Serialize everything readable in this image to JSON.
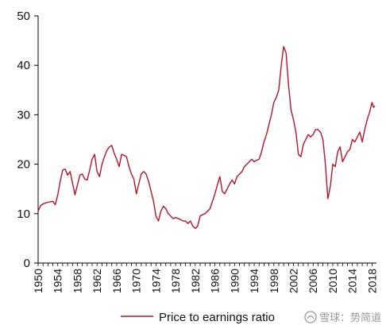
{
  "chart_data": {
    "type": "line",
    "title": "",
    "xlabel": "",
    "ylabel": "",
    "xlim": [
      1950,
      2018.9
    ],
    "ylim": [
      0,
      50
    ],
    "x_ticks": [
      1950,
      1954,
      1958,
      1962,
      1966,
      1970,
      1974,
      1978,
      1982,
      1986,
      1990,
      1994,
      1998,
      2002,
      2006,
      2010,
      2014,
      2018
    ],
    "x_tick_labels": [
      "1950",
      "1954",
      "1958",
      "1962",
      "1966",
      "1970",
      "1974",
      "1978",
      "1982",
      "1986",
      "1990",
      "1994",
      "1998",
      "2002",
      "2006",
      "2010",
      "2014",
      "2018"
    ],
    "y_ticks": [
      0,
      10,
      20,
      30,
      40,
      50
    ],
    "y_tick_labels": [
      "0",
      "10",
      "20",
      "30",
      "40",
      "50"
    ],
    "grid": false,
    "legend": "bottom-center",
    "color": "#b5152b",
    "series": [
      {
        "name": "Price to earnings ratio",
        "x": [
          1950,
          1950.5,
          1951,
          1952,
          1953,
          1953.5,
          1954,
          1954.5,
          1955,
          1955.5,
          1956,
          1956.5,
          1957,
          1957.5,
          1958,
          1958.5,
          1959,
          1959.5,
          1960,
          1960.5,
          1961,
          1961.5,
          1962,
          1962.5,
          1963,
          1963.5,
          1964,
          1964.5,
          1965,
          1965.5,
          1966,
          1966.5,
          1967,
          1967.5,
          1968,
          1968.5,
          1969,
          1969.5,
          1970,
          1970.5,
          1971,
          1971.5,
          1972,
          1972.5,
          1973,
          1973.5,
          1974,
          1974.5,
          1975,
          1975.5,
          1976,
          1976.5,
          1977,
          1977.5,
          1978,
          1978.5,
          1979,
          1979.5,
          1980,
          1980.5,
          1981,
          1981.5,
          1982,
          1982.5,
          1983,
          1983.5,
          1984,
          1984.5,
          1985,
          1985.5,
          1986,
          1986.5,
          1987,
          1987.5,
          1988,
          1988.5,
          1989,
          1989.5,
          1990,
          1990.5,
          1991,
          1991.5,
          1992,
          1992.5,
          1993,
          1993.5,
          1994,
          1994.5,
          1995,
          1995.5,
          1996,
          1996.5,
          1997,
          1997.5,
          1998,
          1998.5,
          1999,
          1999.5,
          2000,
          2000.5,
          2001,
          2001.5,
          2002,
          2002.5,
          2003,
          2003.5,
          2004,
          2004.5,
          2005,
          2005.5,
          2006,
          2006.5,
          2007,
          2007.5,
          2008,
          2008.5,
          2009,
          2009.5,
          2010,
          2010.5,
          2011,
          2011.5,
          2012,
          2012.5,
          2013,
          2013.5,
          2014,
          2014.5,
          2015,
          2015.5,
          2016,
          2016.5,
          2017,
          2017.5,
          2018,
          2018.3,
          2018.6
        ],
        "y": [
          10.5,
          11.6,
          12.0,
          12.3,
          12.5,
          11.8,
          13.8,
          16.5,
          18.8,
          19.0,
          17.8,
          18.5,
          16.2,
          13.8,
          15.8,
          17.8,
          18.0,
          17.0,
          16.8,
          18.8,
          21.0,
          22.0,
          18.5,
          17.5,
          20.0,
          21.5,
          22.8,
          23.5,
          23.8,
          22.2,
          21.0,
          19.5,
          22.0,
          21.8,
          21.5,
          19.5,
          18.0,
          17.0,
          14.0,
          16.0,
          18.0,
          18.5,
          18.0,
          16.5,
          14.5,
          12.5,
          9.5,
          8.5,
          10.5,
          11.5,
          11.0,
          10.0,
          9.5,
          9.0,
          9.2,
          9.0,
          8.8,
          8.5,
          8.5,
          8.0,
          8.5,
          7.5,
          7.0,
          7.5,
          9.5,
          9.8,
          10.0,
          10.5,
          11.0,
          12.5,
          14.0,
          15.8,
          17.5,
          14.5,
          14.0,
          15.0,
          16.0,
          16.8,
          16.0,
          17.5,
          18.0,
          18.5,
          19.5,
          20.0,
          20.5,
          21.0,
          20.5,
          20.8,
          21.0,
          22.5,
          24.5,
          26.0,
          28.0,
          30.0,
          32.5,
          33.5,
          35.0,
          40.0,
          43.8,
          42.5,
          36.0,
          31.0,
          29.0,
          26.5,
          22.0,
          21.5,
          24.0,
          25.0,
          26.0,
          25.5,
          26.0,
          27.0,
          27.0,
          26.5,
          25.0,
          20.0,
          13.0,
          15.5,
          20.0,
          19.5,
          22.5,
          23.5,
          20.5,
          21.5,
          22.5,
          23.0,
          25.0,
          24.5,
          25.5,
          26.5,
          24.5,
          27.0,
          29.0,
          30.5,
          32.5,
          31.5,
          31.8
        ]
      }
    ]
  },
  "legend": {
    "label": "Price to earnings ratio"
  },
  "watermark": {
    "text": "雪球：势简道",
    "icon": "snowball-logo-icon"
  }
}
